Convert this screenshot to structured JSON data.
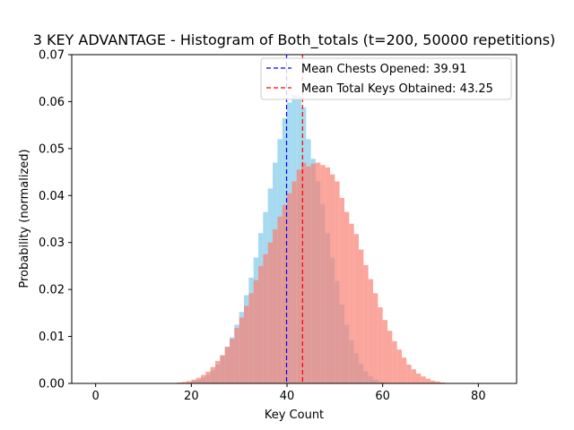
{
  "chart_data": {
    "type": "bar",
    "title": "3 KEY ADVANTAGE - Histogram of Both_totals (t=200, 50000 repetitions)",
    "xlabel": "Key Count",
    "ylabel": "Probability (normalized)",
    "xlim": [
      -5,
      88
    ],
    "ylim": [
      0,
      0.07
    ],
    "xticks": [
      0,
      20,
      40,
      60,
      80
    ],
    "yticks": [
      0.0,
      0.01,
      0.02,
      0.03,
      0.04,
      0.05,
      0.06,
      0.07
    ],
    "xtick_labels": [
      "0",
      "20",
      "40",
      "60",
      "80"
    ],
    "ytick_labels": [
      "0.00",
      "0.01",
      "0.02",
      "0.03",
      "0.04",
      "0.05",
      "0.06",
      "0.07"
    ],
    "bin_width": 1,
    "grid": false,
    "legend_position": "top-right",
    "series": [
      {
        "name": "Chests Opened",
        "color": "#87ceeb",
        "opacity": 0.75,
        "bins_start": 20,
        "values": [
          0.0005,
          0.0008,
          0.0012,
          0.0018,
          0.0028,
          0.004,
          0.006,
          0.0078,
          0.0098,
          0.0125,
          0.0152,
          0.0188,
          0.0225,
          0.0268,
          0.032,
          0.0365,
          0.0415,
          0.047,
          0.052,
          0.0565,
          0.0598,
          0.0615,
          0.0612,
          0.0588,
          0.052,
          0.0478,
          0.043,
          0.0382,
          0.032,
          0.0268,
          0.0218,
          0.0168,
          0.0125,
          0.0092,
          0.0064,
          0.0042,
          0.0026,
          0.0015,
          0.0008,
          0.0004,
          0.0002
        ]
      },
      {
        "name": "Total Keys Obtained",
        "color": "#fa8072",
        "opacity": 0.7,
        "bins_start": 15,
        "values": [
          0.0001,
          0.0001,
          0.0002,
          0.0003,
          0.0005,
          0.0008,
          0.0012,
          0.0018,
          0.0025,
          0.0035,
          0.0048,
          0.006,
          0.0078,
          0.0095,
          0.0118,
          0.014,
          0.0165,
          0.0192,
          0.022,
          0.025,
          0.0275,
          0.03,
          0.0328,
          0.0355,
          0.038,
          0.0405,
          0.043,
          0.0455,
          0.047,
          0.0462,
          0.0468,
          0.047,
          0.0465,
          0.046,
          0.0445,
          0.043,
          0.0395,
          0.0365,
          0.034,
          0.0318,
          0.0285,
          0.0252,
          0.0222,
          0.0192,
          0.0162,
          0.0135,
          0.0112,
          0.009,
          0.0072,
          0.0055,
          0.004,
          0.003,
          0.0021,
          0.0015,
          0.001,
          0.0006,
          0.0004,
          0.0002,
          0.0001,
          0.0001,
          0.0001,
          0.0001,
          0.0001,
          0.0001,
          0.0001,
          0.0001,
          0.0001,
          0.0001
        ]
      }
    ],
    "vlines": [
      {
        "label": "Mean Chests Opened: 39.91",
        "x": 39.91,
        "color": "#0000ff"
      },
      {
        "label": "Mean Total Keys Obtained: 43.25",
        "x": 43.25,
        "color": "#ff0000"
      }
    ]
  }
}
